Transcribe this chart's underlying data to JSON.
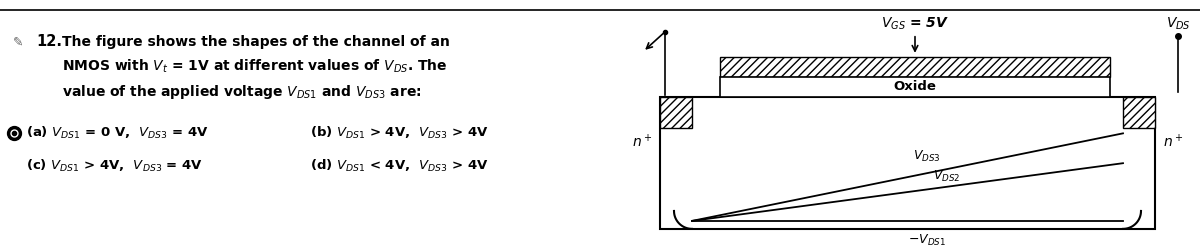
{
  "bg_color": "#ffffff",
  "question_number": "12.",
  "question_text_line1": "The figure shows the shapes of the channel of an",
  "question_text_line2": "NMOS with $V_t$ = 1V at different values of $V_{DS}$. The",
  "question_text_line3": "value of the applied voltage $V_{DS1}$ and $V_{DS3}$ are:",
  "option_a": "(a) $V_{DS1}$ = 0 V,  $V_{DS3}$ = 4V",
  "option_b": "(b) $V_{DS1}$ > 4V,  $V_{DS3}$ > 4V",
  "option_c": "(c) $V_{DS1}$ > 4V,  $V_{DS3}$ = 4V",
  "option_d": "(d) $V_{DS1}$ < 4V,  $V_{DS3}$ > 4V",
  "diagram_vgs_label": "$V_{GS}$ = 5V",
  "diagram_vds_label": "$V_{DS}$",
  "diagram_oxide_label": "Oxide",
  "diagram_n_left": "$n^+$",
  "diagram_n_right": "$n^+$",
  "diagram_vds1_label": "$-V_{DS1}$",
  "diagram_vds2_label": "$V_{DS2}$",
  "diagram_vds3_label": "$V_{DS3}$",
  "text_color": "#000000"
}
